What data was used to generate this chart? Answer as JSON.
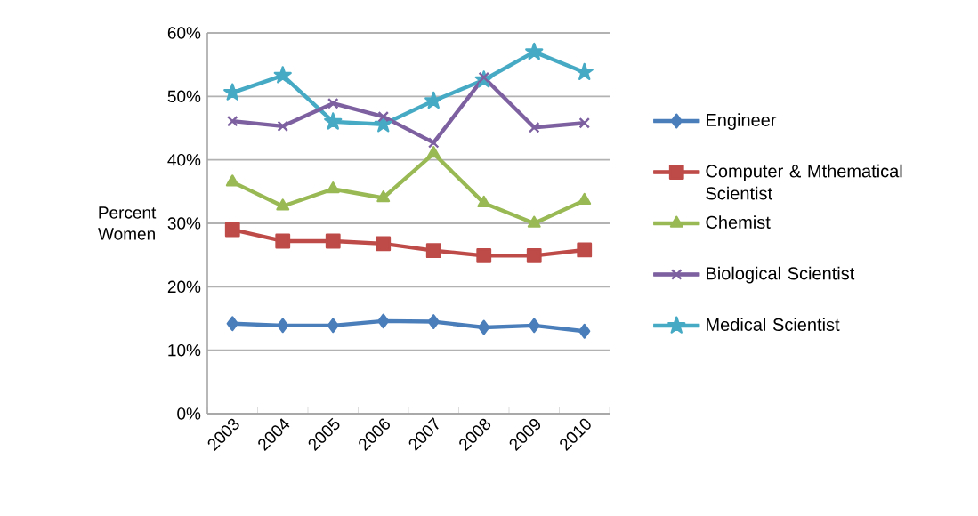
{
  "chart_data": {
    "type": "line",
    "ylabel": "Percent Women",
    "categories": [
      "2003",
      "2004",
      "2005",
      "2006",
      "2007",
      "2008",
      "2009",
      "2010"
    ],
    "ylim": [
      0,
      60
    ],
    "yticks": [
      {
        "value": 0,
        "label": "0%"
      },
      {
        "value": 10,
        "label": "10%"
      },
      {
        "value": 20,
        "label": "20%"
      },
      {
        "value": 30,
        "label": "30%"
      },
      {
        "value": 40,
        "label": "40%"
      },
      {
        "value": 50,
        "label": "50%"
      },
      {
        "value": 60,
        "label": "60%"
      }
    ],
    "grid": "y",
    "legend": "right",
    "line_style": "solid",
    "series": [
      {
        "name": "Engineer",
        "color": "#4a7ebb",
        "marker": "diamond",
        "values": [
          14.2,
          13.9,
          13.9,
          14.6,
          14.5,
          13.6,
          13.9,
          13.0
        ]
      },
      {
        "name": "Computer & Mthematical Scientist",
        "color": "#be4b48",
        "marker": "square",
        "values": [
          29.0,
          27.2,
          27.2,
          26.8,
          25.7,
          24.9,
          24.9,
          25.8
        ]
      },
      {
        "name": "Chemist",
        "color": "#98b954",
        "marker": "triangle",
        "values": [
          36.5,
          32.7,
          35.4,
          34.0,
          41.0,
          33.2,
          30.0,
          33.6
        ]
      },
      {
        "name": "Biological Scientist",
        "color": "#7d60a0",
        "marker": "cross",
        "values": [
          46.1,
          45.3,
          48.9,
          46.8,
          42.7,
          53.0,
          45.1,
          45.8
        ]
      },
      {
        "name": "Medical Scientist",
        "color": "#46aac5",
        "marker": "star",
        "values": [
          50.6,
          53.3,
          46.0,
          45.6,
          49.3,
          52.6,
          57.0,
          53.8
        ]
      }
    ]
  }
}
